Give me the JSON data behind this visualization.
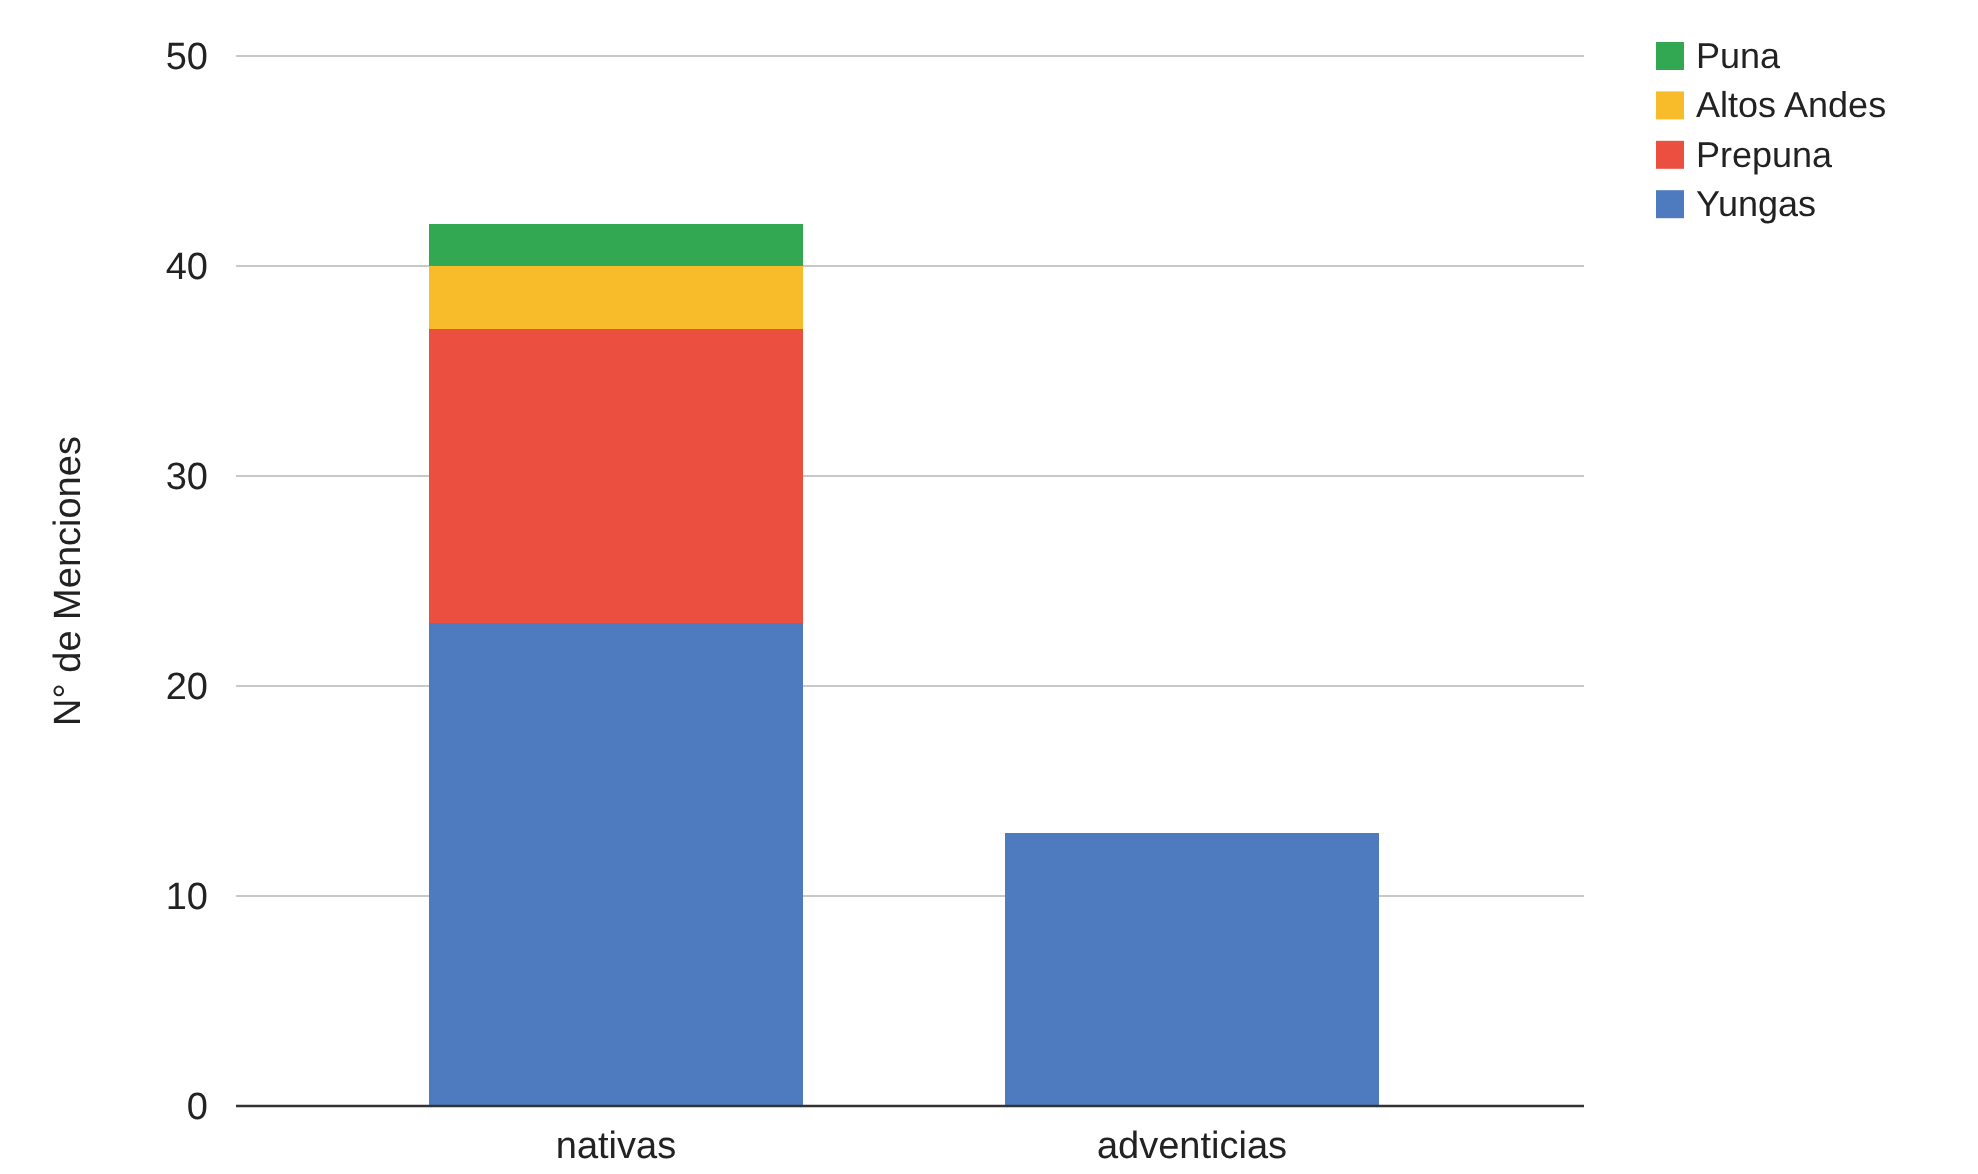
{
  "chart_data": {
    "type": "bar",
    "stacked": true,
    "ylabel": "N° de Menciones",
    "categories": [
      "nativas",
      "adventicias"
    ],
    "series": [
      {
        "name": "Yungas",
        "color": "#4e7bbf",
        "values": [
          23,
          13
        ]
      },
      {
        "name": "Prepuna",
        "color": "#ea4f3f",
        "values": [
          14,
          0
        ]
      },
      {
        "name": "Altos Andes",
        "color": "#f8bb2a",
        "values": [
          3,
          0
        ]
      },
      {
        "name": "Puna",
        "color": "#33a853",
        "values": [
          2,
          0
        ]
      }
    ],
    "ylim": [
      0,
      50
    ],
    "yticks": [
      0,
      10,
      20,
      30,
      40,
      50
    ],
    "grid": "y",
    "legend": "top right"
  }
}
